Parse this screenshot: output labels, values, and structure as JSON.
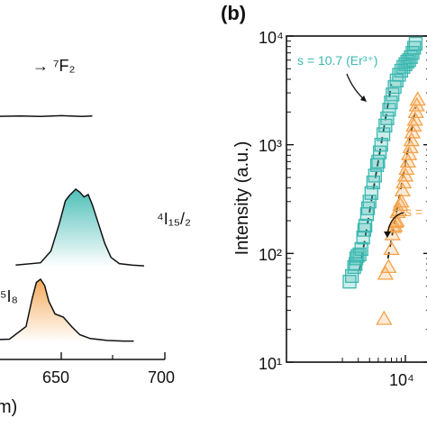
{
  "colors": {
    "teal": "#3bb8b0",
    "orange": "#f4a24a",
    "dark": "#111111"
  },
  "left_panel": {
    "annotations": {
      "top": "→ ⁷F₂",
      "mid": "⁴I₁₅/₂",
      "bot": "⁵I₈"
    },
    "x_ticks": [
      "650",
      "700"
    ],
    "x_label": "m)"
  },
  "right_panel": {
    "panel_label": "(b)",
    "y_label": "Intensity (a.u.)",
    "y_ticks": [
      "10⁴",
      "10³",
      "10²",
      "10¹"
    ],
    "x_tick": "10⁴",
    "annot_teal": "s = 10.7 (Er³⁺)",
    "annot_orange": "s ="
  },
  "chart_data": [
    {
      "type": "line",
      "title": "",
      "xlabel": "(nm)",
      "ylabel": "",
      "xlim": [
        600,
        700
      ],
      "series": [
        {
          "values": [
            [
              590,
              0.03
            ],
            [
              600,
              0.02
            ],
            [
              612,
              0.03
            ],
            [
              620,
              0.02
            ],
            [
              630,
              0.03
            ],
            [
              640,
              0.02
            ],
            [
              650,
              0.04
            ],
            [
              660,
              0.02
            ],
            [
              665,
              0.03
            ]
          ]
        },
        {
          "values": [
            [
              590,
              0.02
            ],
            [
              600,
              0.02
            ],
            [
              610,
              0.03
            ],
            [
              617,
              0.02
            ]
          ]
        },
        {
          "values": [
            [
              628,
              0.02
            ],
            [
              640,
              0.05
            ],
            [
              645,
              0.2
            ],
            [
              649,
              0.55
            ],
            [
              652,
              0.85
            ],
            [
              654,
              0.92
            ],
            [
              657,
              1.0
            ],
            [
              659,
              0.96
            ],
            [
              661,
              0.9
            ],
            [
              663,
              0.93
            ],
            [
              665,
              0.8
            ],
            [
              668,
              0.55
            ],
            [
              671,
              0.3
            ],
            [
              674,
              0.12
            ],
            [
              678,
              0.04
            ],
            [
              684,
              0.02
            ],
            [
              690,
              0.01
            ]
          ]
        },
        {
          "values": [
            [
              598,
              0.02
            ],
            [
              610,
              0.03
            ],
            [
              625,
              0.05
            ],
            [
              633,
              0.25
            ],
            [
              636,
              0.7
            ],
            [
              638,
              0.95
            ],
            [
              640,
              1.0
            ],
            [
              642,
              0.9
            ],
            [
              644,
              0.65
            ],
            [
              647,
              0.45
            ],
            [
              651,
              0.4
            ],
            [
              655,
              0.25
            ],
            [
              659,
              0.12
            ],
            [
              664,
              0.06
            ],
            [
              672,
              0.03
            ],
            [
              680,
              0.02
            ],
            [
              685,
              0.02
            ]
          ]
        }
      ]
    },
    {
      "type": "scatter",
      "title": "",
      "xlabel": "",
      "ylabel": "Intensity (a.u.)",
      "log_x": true,
      "log_y": true,
      "ylim": [
        10,
        10000
      ],
      "series": [
        {
          "name": "Er³⁺",
          "marker": "square",
          "slope": 10.7,
          "points": [
            [
              2400,
              55
            ],
            [
              2550,
              62
            ],
            [
              2700,
              75
            ],
            [
              2800,
              80
            ],
            [
              2850,
              90
            ],
            [
              2950,
              95
            ],
            [
              3100,
              98
            ],
            [
              3250,
              110
            ],
            [
              3400,
              140
            ],
            [
              3500,
              165
            ],
            [
              3600,
              180
            ],
            [
              3750,
              230
            ],
            [
              3850,
              260
            ],
            [
              4000,
              300
            ],
            [
              4200,
              360
            ],
            [
              4400,
              450
            ],
            [
              4600,
              520
            ],
            [
              4850,
              650
            ],
            [
              5000,
              700
            ],
            [
              5200,
              850
            ],
            [
              5400,
              1000
            ],
            [
              5700,
              1250
            ],
            [
              6000,
              1500
            ],
            [
              6300,
              1750
            ],
            [
              6600,
              2100
            ],
            [
              6900,
              2450
            ],
            [
              7200,
              2900
            ],
            [
              7600,
              3400
            ],
            [
              8000,
              3900
            ],
            [
              8500,
              4400
            ],
            [
              9000,
              4800
            ],
            [
              9500,
              5200
            ],
            [
              10000,
              5500
            ],
            [
              10500,
              5800
            ],
            [
              11000,
              6000
            ],
            [
              11500,
              6400
            ],
            [
              12000,
              7000
            ],
            [
              12500,
              7800
            ],
            [
              13000,
              8500
            ]
          ]
        },
        {
          "name": "",
          "marker": "triangle",
          "points": [
            [
              5800,
              25
            ],
            [
              6000,
              65
            ],
            [
              6500,
              75
            ],
            [
              7000,
              110
            ],
            [
              7200,
              150
            ],
            [
              7400,
              175
            ],
            [
              7600,
              180
            ],
            [
              7800,
              195
            ],
            [
              8000,
              200
            ],
            [
              8200,
              240
            ],
            [
              8500,
              250
            ],
            [
              8800,
              280
            ],
            [
              9000,
              300
            ],
            [
              9300,
              380
            ],
            [
              9600,
              450
            ],
            [
              10000,
              520
            ],
            [
              10300,
              600
            ],
            [
              10700,
              700
            ],
            [
              11000,
              820
            ],
            [
              11400,
              950
            ],
            [
              11700,
              1100
            ],
            [
              12000,
              1300
            ],
            [
              12400,
              1500
            ],
            [
              12800,
              1700
            ],
            [
              13100,
              2000
            ],
            [
              13400,
              2300
            ],
            [
              13700,
              2600
            ]
          ]
        }
      ]
    }
  ]
}
